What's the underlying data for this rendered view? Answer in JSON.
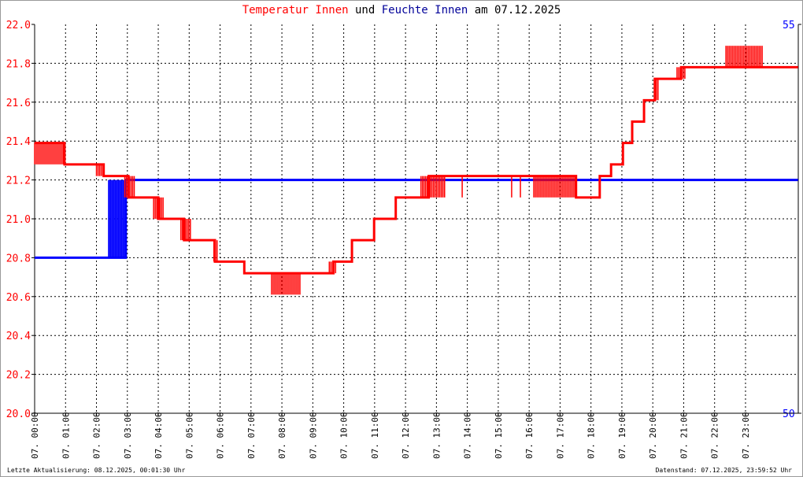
{
  "title": {
    "part1": "Temperatur Innen",
    "part2": "und",
    "part3": "Feuchte Innen",
    "part4": "am 07.12.2025"
  },
  "footer": {
    "left": "Letzte Aktualisierung: 08.12.2025, 00:01:30 Uhr",
    "right": "Datenstand: 07.12.2025, 23:59:52 Uhr"
  },
  "colors": {
    "temperature": "#ff0000",
    "humidity": "#0000ff",
    "grid": "#000000"
  },
  "chart_data": {
    "type": "line",
    "grid": true,
    "xlim": [
      "00:00",
      "24:42"
    ],
    "x_ticks": [
      "07. 00:00",
      "07. 01:00",
      "07. 02:00",
      "07. 03:00",
      "07. 04:00",
      "07. 05:00",
      "07. 06:00",
      "07. 07:00",
      "07. 08:00",
      "07. 09:00",
      "07. 10:00",
      "07. 11:00",
      "07. 12:00",
      "07. 13:00",
      "07. 14:00",
      "07. 15:00",
      "07. 16:00",
      "07. 17:00",
      "07. 18:00",
      "07. 19:00",
      "07. 20:00",
      "07. 21:00",
      "07. 22:00",
      "07. 23:00"
    ],
    "y_left": {
      "ylim": [
        20.0,
        22.0
      ],
      "ticks": [
        "20.0",
        "20.2",
        "20.4",
        "20.6",
        "20.8",
        "21.0",
        "21.2",
        "21.4",
        "21.6",
        "21.8",
        "22.0"
      ]
    },
    "y_right": {
      "ylim": [
        50,
        55
      ],
      "ticks": [
        "50",
        "55"
      ]
    },
    "series": [
      {
        "name": "Temperatur Innen",
        "axis": "left",
        "points": [
          [
            "00:00",
            21.39
          ],
          [
            "00:58",
            21.28
          ],
          [
            "02:14",
            21.22
          ],
          [
            "03:02",
            21.11
          ],
          [
            "04:00",
            21.0
          ],
          [
            "04:50",
            20.89
          ],
          [
            "05:50",
            20.78
          ],
          [
            "06:47",
            20.72
          ],
          [
            "09:40",
            20.78
          ],
          [
            "10:16",
            20.89
          ],
          [
            "10:59",
            21.0
          ],
          [
            "11:41",
            21.11
          ],
          [
            "12:45",
            21.22
          ],
          [
            "17:31",
            21.11
          ],
          [
            "18:17",
            21.22
          ],
          [
            "18:39",
            21.28
          ],
          [
            "19:02",
            21.39
          ],
          [
            "19:20",
            21.5
          ],
          [
            "19:43",
            21.61
          ],
          [
            "20:04",
            21.72
          ],
          [
            "20:55",
            21.78
          ],
          [
            "24:42",
            21.78
          ]
        ],
        "fluctuations": [
          [
            "00:00",
            "00:58",
            21.28,
            21.39
          ],
          [
            "02:00",
            "02:14",
            21.22,
            21.28
          ],
          [
            "02:55",
            "03:16",
            21.11,
            21.22
          ],
          [
            "03:51",
            "04:11",
            21.0,
            21.11
          ],
          [
            "04:44",
            "05:03",
            20.89,
            21.0
          ],
          [
            "05:48",
            "05:55",
            20.78,
            20.89
          ],
          [
            "07:40",
            "08:37",
            20.61,
            20.72
          ],
          [
            "09:32",
            "09:47",
            20.72,
            20.78
          ],
          [
            "12:30",
            "13:16",
            21.11,
            21.22
          ],
          [
            "13:50",
            "13:53",
            21.11,
            21.22
          ],
          [
            "15:26",
            "15:29",
            21.11,
            21.22
          ],
          [
            "15:43",
            "15:46",
            21.11,
            21.22
          ],
          [
            "16:09",
            "17:31",
            21.11,
            21.22
          ],
          [
            "20:04",
            "20:13",
            21.61,
            21.72
          ],
          [
            "20:47",
            "21:05",
            21.72,
            21.78
          ],
          [
            "22:22",
            "23:35",
            21.78,
            21.89
          ]
        ]
      },
      {
        "name": "Feuchte Innen",
        "axis": "right",
        "points": [
          [
            "00:00",
            52
          ],
          [
            "02:24",
            52
          ],
          [
            "02:57",
            53
          ],
          [
            "24:42",
            53
          ]
        ],
        "fluctuations": [
          [
            "02:24",
            "02:57",
            52,
            53
          ]
        ]
      }
    ]
  }
}
